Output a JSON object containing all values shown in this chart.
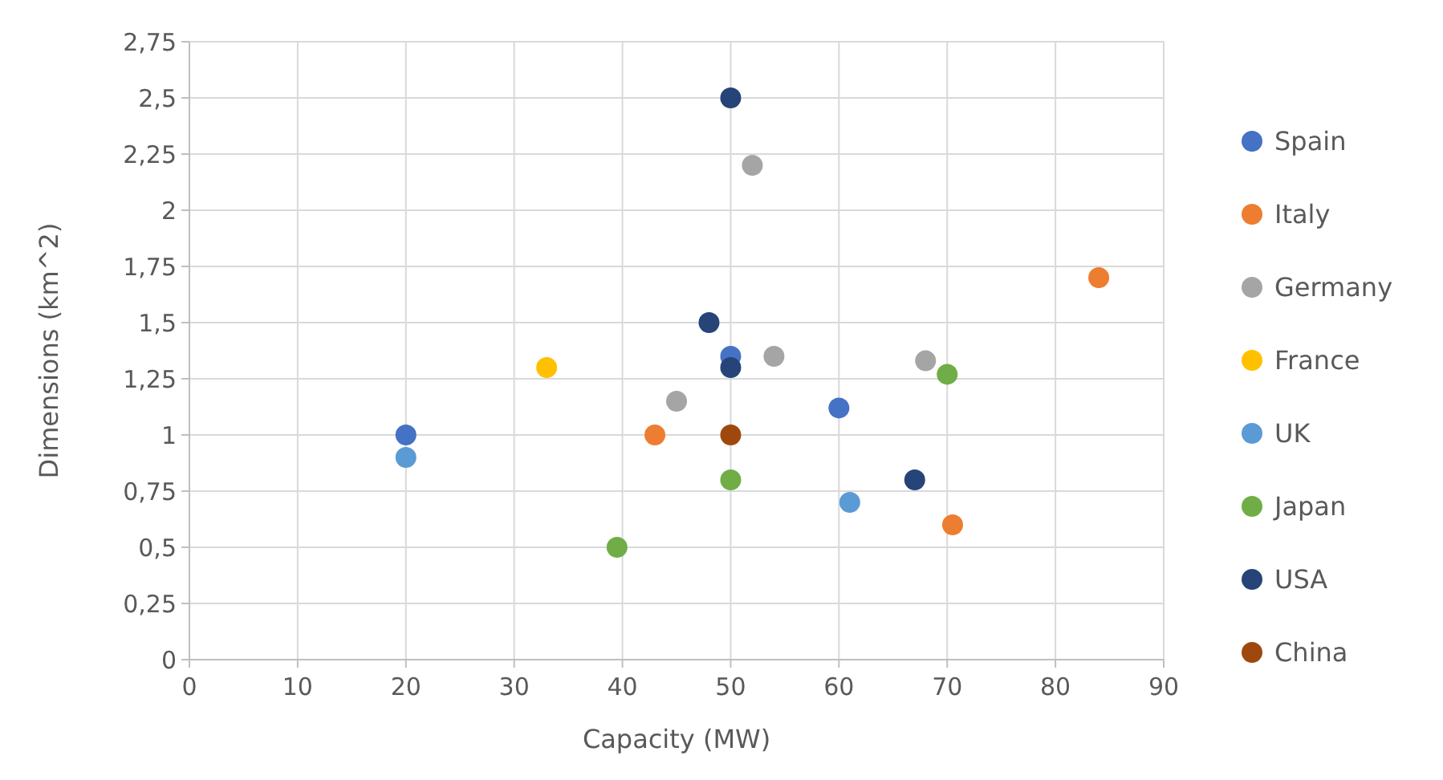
{
  "chart_data": {
    "type": "scatter",
    "xlabel": "Capacity (MW)",
    "ylabel": "Dimensions (km^2)",
    "xlim": [
      0,
      90
    ],
    "xticks": [
      0,
      10,
      20,
      30,
      40,
      50,
      60,
      70,
      80,
      90
    ],
    "ylim": [
      0,
      2.75
    ],
    "yticks": [
      0,
      {
        "value": 0.25,
        "label": "0,25"
      },
      {
        "value": 0.5,
        "label": "0,5"
      },
      {
        "value": 0.75,
        "label": "0,75"
      },
      1,
      {
        "value": 1.25,
        "label": "1,25"
      },
      {
        "value": 1.5,
        "label": "1,5"
      },
      {
        "value": 1.75,
        "label": "1,75"
      },
      2,
      {
        "value": 2.25,
        "label": "2,25"
      },
      {
        "value": 2.5,
        "label": "2,5"
      },
      {
        "value": 2.75,
        "label": "2,75"
      }
    ],
    "grid": true,
    "legend": "right",
    "marker": "circle",
    "series": [
      {
        "name": "Spain",
        "color": "#4472c4",
        "x": [
          20,
          50,
          60
        ],
        "values": [
          1.0,
          1.35,
          1.12
        ]
      },
      {
        "name": "Italy",
        "color": "#ed7d31",
        "x": [
          43,
          84,
          70.5
        ],
        "values": [
          1.0,
          1.7,
          0.6
        ]
      },
      {
        "name": "Germany",
        "color": "#a5a5a5",
        "x": [
          52,
          54,
          45,
          68
        ],
        "values": [
          2.2,
          1.35,
          1.15,
          1.33
        ]
      },
      {
        "name": "France",
        "color": "#ffc000",
        "x": [
          33
        ],
        "values": [
          1.3
        ]
      },
      {
        "name": "UK",
        "color": "#5b9bd5",
        "x": [
          20,
          61
        ],
        "values": [
          0.9,
          0.7
        ]
      },
      {
        "name": "Japan",
        "color": "#70ad47",
        "x": [
          39.5,
          50,
          70
        ],
        "values": [
          0.5,
          0.8,
          1.27
        ]
      },
      {
        "name": "USA",
        "color": "#264478",
        "x": [
          50,
          48,
          50,
          67
        ],
        "values": [
          2.5,
          1.5,
          1.3,
          0.8
        ]
      },
      {
        "name": "China",
        "color": "#9e480e",
        "x": [
          50
        ],
        "values": [
          1.0
        ]
      }
    ]
  }
}
